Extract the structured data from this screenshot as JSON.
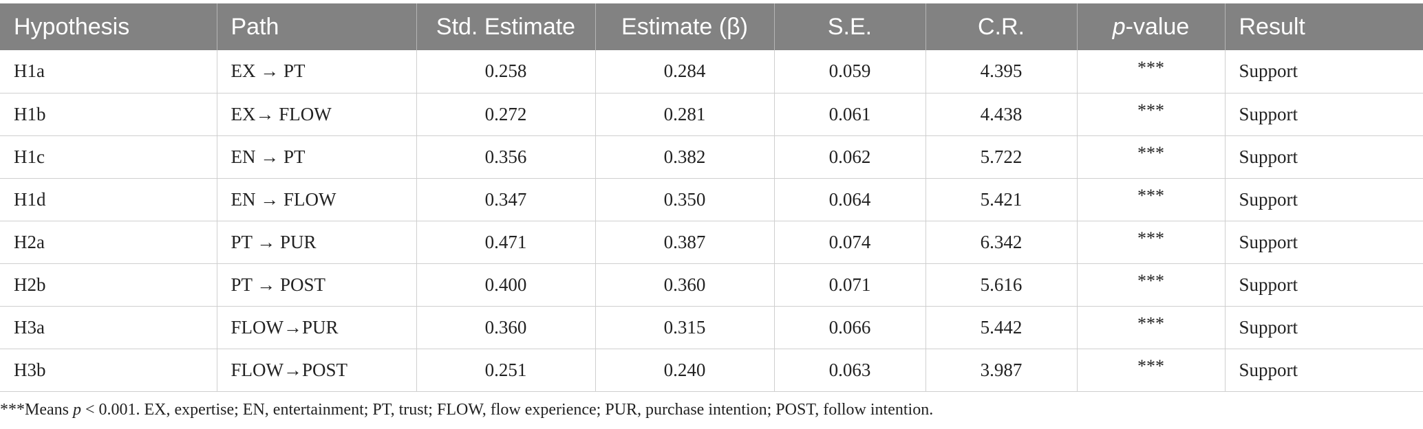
{
  "table": {
    "columns": [
      {
        "label_prefix": "",
        "label_italic": "",
        "label_suffix": "Hypothesis"
      },
      {
        "label_prefix": "",
        "label_italic": "",
        "label_suffix": "Path"
      },
      {
        "label_prefix": "",
        "label_italic": "",
        "label_suffix": "Std. Estimate"
      },
      {
        "label_prefix": "",
        "label_italic": "",
        "label_suffix": "Estimate (β)"
      },
      {
        "label_prefix": "",
        "label_italic": "",
        "label_suffix": "S.E."
      },
      {
        "label_prefix": "",
        "label_italic": "",
        "label_suffix": "C.R."
      },
      {
        "label_prefix": "",
        "label_italic": "p",
        "label_suffix": "-value"
      },
      {
        "label_prefix": "",
        "label_italic": "",
        "label_suffix": "Result"
      }
    ],
    "rows": [
      {
        "hypothesis": "H1a",
        "path": "EX → PT",
        "std_estimate": "0.258",
        "estimate": "0.284",
        "se": "0.059",
        "cr": "4.395",
        "p_value": "***",
        "result": "Support"
      },
      {
        "hypothesis": "H1b",
        "path": "EX→ FLOW",
        "std_estimate": "0.272",
        "estimate": "0.281",
        "se": "0.061",
        "cr": "4.438",
        "p_value": "***",
        "result": "Support"
      },
      {
        "hypothesis": "H1c",
        "path": "EN → PT",
        "std_estimate": "0.356",
        "estimate": "0.382",
        "se": "0.062",
        "cr": "5.722",
        "p_value": "***",
        "result": "Support"
      },
      {
        "hypothesis": "H1d",
        "path": "EN → FLOW",
        "std_estimate": "0.347",
        "estimate": "0.350",
        "se": "0.064",
        "cr": "5.421",
        "p_value": "***",
        "result": "Support"
      },
      {
        "hypothesis": "H2a",
        "path": "PT → PUR",
        "std_estimate": "0.471",
        "estimate": "0.387",
        "se": "0.074",
        "cr": "6.342",
        "p_value": "***",
        "result": "Support"
      },
      {
        "hypothesis": "H2b",
        "path": "PT → POST",
        "std_estimate": "0.400",
        "estimate": "0.360",
        "se": "0.071",
        "cr": "5.616",
        "p_value": "***",
        "result": "Support"
      },
      {
        "hypothesis": "H3a",
        "path": "FLOW→PUR",
        "std_estimate": "0.360",
        "estimate": "0.315",
        "se": "0.066",
        "cr": "5.442",
        "p_value": "***",
        "result": "Support"
      },
      {
        "hypothesis": "H3b",
        "path": "FLOW→POST",
        "std_estimate": "0.251",
        "estimate": "0.240",
        "se": "0.063",
        "cr": "3.987",
        "p_value": "***",
        "result": "Support"
      }
    ]
  },
  "footnote": {
    "prefix": "***Means ",
    "italic": "p",
    "suffix": " < 0.001. EX, expertise; EN, entertainment; PT, trust; FLOW, flow experience; PUR, purchase intention; POST, follow intention."
  },
  "colors": {
    "header_bg": "#828282",
    "header_text": "#ffffff",
    "grid_line": "#cfcfcf",
    "body_text": "#222222"
  }
}
